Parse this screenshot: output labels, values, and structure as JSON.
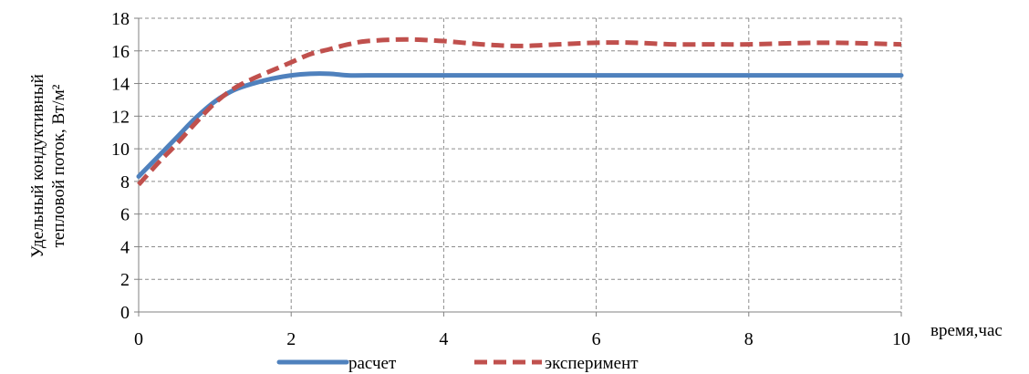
{
  "chart_data": {
    "type": "line",
    "xlabel": "время,час",
    "ylabel_lines": [
      "Удельный кондуктивный",
      "тепловой поток, Вт/м²"
    ],
    "xlim": [
      0,
      10
    ],
    "ylim": [
      0,
      18
    ],
    "xticks": [
      "0",
      "2",
      "4",
      "6",
      "8",
      "10"
    ],
    "yticks": [
      "0",
      "2",
      "4",
      "6",
      "8",
      "10",
      "12",
      "14",
      "16",
      "18"
    ],
    "grid": true,
    "legend_position": "bottom",
    "series": [
      {
        "name": "расчет",
        "color": "#4F81BD",
        "style": "solid",
        "x": [
          0,
          0.25,
          0.5,
          0.75,
          1.0,
          1.25,
          1.5,
          1.75,
          2.0,
          2.25,
          2.5,
          2.75,
          3.0,
          4,
          5,
          6,
          7,
          8,
          9,
          10
        ],
        "y": [
          8.3,
          9.5,
          10.7,
          11.9,
          12.9,
          13.6,
          14.0,
          14.3,
          14.5,
          14.6,
          14.6,
          14.5,
          14.5,
          14.5,
          14.5,
          14.5,
          14.5,
          14.5,
          14.5,
          14.5
        ]
      },
      {
        "name": "эксперимент",
        "color": "#C0504D",
        "style": "dashed",
        "x": [
          0,
          0.25,
          0.5,
          0.75,
          1.0,
          1.25,
          1.5,
          1.75,
          2.0,
          2.25,
          2.5,
          2.75,
          3.0,
          3.5,
          4.0,
          4.5,
          5.0,
          5.5,
          6.0,
          6.5,
          7.0,
          7.5,
          8.0,
          9.0,
          10.0
        ],
        "y": [
          7.8,
          9.1,
          10.3,
          11.6,
          12.8,
          13.7,
          14.3,
          14.8,
          15.3,
          15.8,
          16.1,
          16.4,
          16.6,
          16.7,
          16.6,
          16.4,
          16.3,
          16.4,
          16.5,
          16.5,
          16.4,
          16.4,
          16.4,
          16.5,
          16.4
        ]
      }
    ]
  }
}
